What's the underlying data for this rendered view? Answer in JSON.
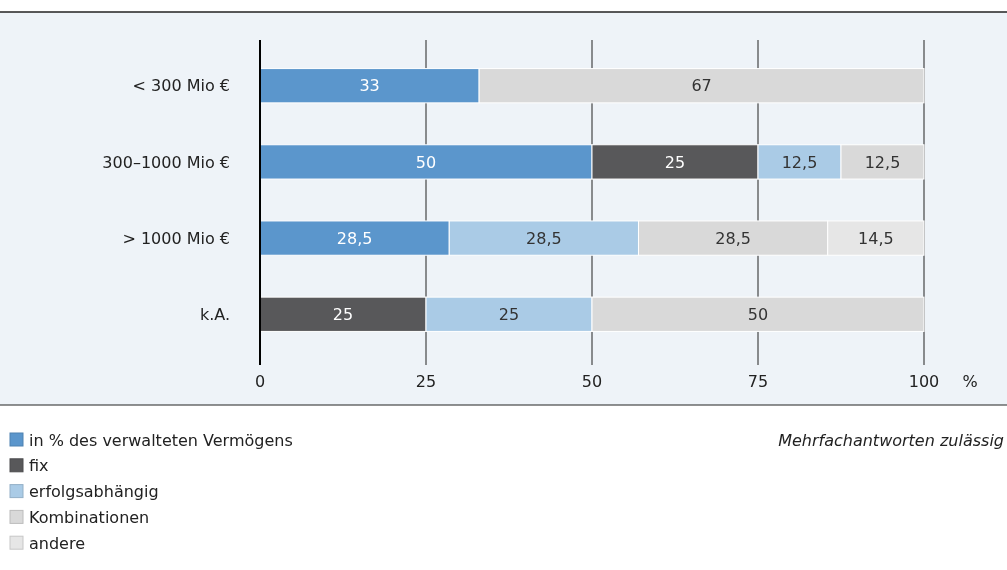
{
  "chart_data": {
    "type": "bar",
    "orientation": "horizontal",
    "stacked": true,
    "categories": [
      "< 300 Mio €",
      "300–1000 Mio €",
      "> 1000 Mio €",
      "k.A."
    ],
    "xlabel": "%",
    "xlim": [
      0,
      100
    ],
    "xticks": [
      0,
      25,
      50,
      75,
      100
    ],
    "grid": "x",
    "legend": "bottom",
    "annotations": [
      "Mehrfachantworten zulässig"
    ],
    "series": [
      {
        "name": "in % des verwalteten Vermögens",
        "color": "#5b96cc",
        "values": [
          33,
          50,
          28.5,
          null
        ],
        "value_labels": [
          "33",
          "50",
          "28,5",
          null
        ]
      },
      {
        "name": "fix",
        "color": "#58585a",
        "values": [
          null,
          25,
          null,
          25
        ],
        "value_labels": [
          null,
          "25",
          null,
          "25"
        ]
      },
      {
        "name": "erfolgsabhängig",
        "color": "#aacbe6",
        "values": [
          null,
          12.5,
          28.5,
          25
        ],
        "value_labels": [
          null,
          "12,5",
          "28,5",
          "25"
        ]
      },
      {
        "name": "Kombinationen",
        "color": "#d9d9d9",
        "values": [
          67,
          12.5,
          28.5,
          50
        ],
        "value_labels": [
          "67",
          "12,5",
          "28,5",
          "50"
        ]
      },
      {
        "name": "andere",
        "color": "#e6e6e6",
        "values": [
          null,
          null,
          14.5,
          null
        ],
        "value_labels": [
          null,
          null,
          "14,5",
          null
        ]
      }
    ]
  }
}
